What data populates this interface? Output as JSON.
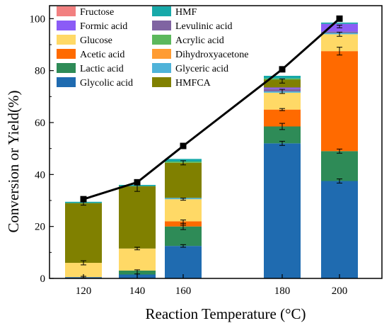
{
  "chart_data": {
    "type": "bar",
    "stacked": true,
    "xlabel": "Reaction Temperature (°C)",
    "ylabel": "Conversion or Yield(%)",
    "ylim": [
      0,
      105
    ],
    "y_ticks": [
      0,
      20,
      40,
      60,
      80,
      100
    ],
    "categories": [
      "120",
      "140",
      "160",
      "180",
      "200"
    ],
    "series": [
      {
        "name": "Glycolic acid",
        "color": "#1f6bb0",
        "values": [
          0.5,
          1.5,
          12.5,
          52.0,
          37.5
        ]
      },
      {
        "name": "Lactic acid",
        "color": "#2e8b57",
        "values": [
          0.0,
          1.5,
          7.5,
          6.5,
          11.5
        ]
      },
      {
        "name": "Acetic acid",
        "color": "#ff6a00",
        "values": [
          0.0,
          0.0,
          2.0,
          6.5,
          38.5
        ]
      },
      {
        "name": "Dihydroxyacetone",
        "color": "#ff9c33",
        "values": [
          0.0,
          0.0,
          0.0,
          0.0,
          0.0
        ]
      },
      {
        "name": "Glucose",
        "color": "#ffd966",
        "values": [
          5.5,
          8.5,
          8.5,
          6.5,
          6.5
        ]
      },
      {
        "name": "Glyceric acid",
        "color": "#4fb3d9",
        "values": [
          0.0,
          0.0,
          0.5,
          0.5,
          0.5
        ]
      },
      {
        "name": "Levulinic acid",
        "color": "#8064a2",
        "values": [
          0.0,
          0.0,
          0.0,
          1.0,
          0.5
        ]
      },
      {
        "name": "Formic acid",
        "color": "#8b5cf6",
        "values": [
          0.0,
          0.0,
          0.0,
          0.5,
          3.0
        ]
      },
      {
        "name": "HMFCA",
        "color": "#808000",
        "values": [
          23.0,
          24.0,
          13.5,
          3.0,
          0.0
        ]
      },
      {
        "name": "Acrylic acid",
        "color": "#5cb85c",
        "values": [
          0.0,
          0.0,
          0.5,
          0.5,
          0.0
        ]
      },
      {
        "name": "HMF",
        "color": "#17a9a9",
        "values": [
          0.5,
          0.5,
          1.0,
          1.0,
          0.5
        ]
      },
      {
        "name": "Fructose",
        "color": "#f28080",
        "values": [
          0.0,
          0.0,
          0.0,
          0.0,
          0.0
        ]
      }
    ],
    "error_bars": [
      {
        "x": "120",
        "y": 0.5,
        "err": 0.3
      },
      {
        "x": "120",
        "y": 6.0,
        "err": 0.8
      },
      {
        "x": "120",
        "y": 29.0,
        "err": 0.8
      },
      {
        "x": "140",
        "y": 2.5,
        "err": 0.8
      },
      {
        "x": "140",
        "y": 11.5,
        "err": 0.5
      },
      {
        "x": "140",
        "y": 35.0,
        "err": 1.5
      },
      {
        "x": "160",
        "y": 12.5,
        "err": 0.5
      },
      {
        "x": "160",
        "y": 20.0,
        "err": 1.2
      },
      {
        "x": "160",
        "y": 21.5,
        "err": 1.0
      },
      {
        "x": "160",
        "y": 30.5,
        "err": 0.4
      },
      {
        "x": "160",
        "y": 44.5,
        "err": 0.8
      },
      {
        "x": "180",
        "y": 52.0,
        "err": 0.8
      },
      {
        "x": "180",
        "y": 58.5,
        "err": 1.2
      },
      {
        "x": "180",
        "y": 65.0,
        "err": 0.4
      },
      {
        "x": "180",
        "y": 72.0,
        "err": 0.8
      },
      {
        "x": "180",
        "y": 76.0,
        "err": 0.8
      },
      {
        "x": "200",
        "y": 37.5,
        "err": 0.8
      },
      {
        "x": "200",
        "y": 49.0,
        "err": 0.8
      },
      {
        "x": "200",
        "y": 87.5,
        "err": 1.5
      },
      {
        "x": "200",
        "y": 94.0,
        "err": 0.8
      },
      {
        "x": "200",
        "y": 97.0,
        "err": 0.5
      }
    ],
    "line": {
      "name": "Conversion",
      "color": "#000000",
      "values": [
        30.5,
        37.0,
        51.0,
        80.5,
        100.0
      ]
    },
    "legend": {
      "position": "top-left",
      "columns": [
        [
          "Fructose",
          "Formic acid",
          "Glucose",
          "Acetic acid",
          "Lactic acid",
          "Glycolic acid"
        ],
        [
          "HMF",
          "Levulinic acid",
          "Acrylic acid",
          "Dihydroxyacetone",
          "Glyceric acid",
          "HMFCA"
        ]
      ]
    }
  }
}
